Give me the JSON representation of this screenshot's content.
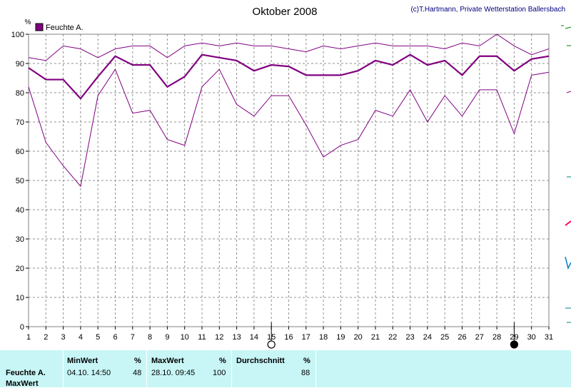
{
  "chart_data": {
    "type": "line",
    "title": "Oktober 2008",
    "copyright": "(c)T.Hartmann, Private Wetterstation Ballersbach",
    "ylabel": "%",
    "ylim": [
      0,
      100
    ],
    "yticks": [
      0,
      10,
      20,
      30,
      40,
      50,
      60,
      70,
      80,
      90,
      100
    ],
    "x": [
      1,
      2,
      3,
      4,
      5,
      6,
      7,
      8,
      9,
      10,
      11,
      12,
      13,
      14,
      15,
      16,
      17,
      18,
      19,
      20,
      21,
      22,
      23,
      24,
      25,
      26,
      27,
      28,
      29,
      30,
      31
    ],
    "legend": "Feuchte A.",
    "grid": true,
    "series": [
      {
        "role": "max",
        "color": "#800080",
        "values": [
          92,
          91,
          96,
          95,
          92,
          95,
          96,
          96,
          92,
          96,
          97,
          96,
          97,
          96,
          96,
          95,
          94,
          96,
          95,
          96,
          97,
          96,
          96,
          96,
          95,
          97,
          96,
          100,
          96,
          93,
          95
        ]
      },
      {
        "role": "avg",
        "color": "#800080",
        "values": [
          88.5,
          84.5,
          84.5,
          78,
          85.5,
          92.5,
          89.5,
          89.5,
          82,
          85.5,
          93,
          92,
          91,
          87.5,
          89.5,
          89,
          86,
          86,
          86,
          87.5,
          91,
          89.5,
          93,
          89.5,
          91,
          86,
          92.5,
          92.5,
          87.5,
          91.5,
          92.5
        ]
      },
      {
        "role": "min",
        "color": "#800080",
        "values": [
          82,
          63,
          55,
          48,
          79,
          88,
          73,
          74,
          64,
          62,
          82,
          88,
          76,
          72,
          79,
          79,
          69,
          58,
          62,
          64,
          74,
          72,
          81,
          70,
          79,
          72,
          81,
          81,
          66,
          86,
          87
        ]
      }
    ],
    "moon_markers": [
      {
        "day": 15,
        "phase": "full"
      },
      {
        "day": 29,
        "phase": "new"
      }
    ]
  },
  "stats": {
    "row_label": "Feuchte A.",
    "row_label2": "MaxWert",
    "min_header": "MinWert",
    "min_unit": "%",
    "min_date": "04.10.  14:50",
    "min_value": "48",
    "max_header": "MaxWert",
    "max_unit": "%",
    "max_date": "28.10.  09:45",
    "max_value": "100",
    "avg_header": "Durchschnitt",
    "avg_unit": "%",
    "avg_value": "88"
  }
}
